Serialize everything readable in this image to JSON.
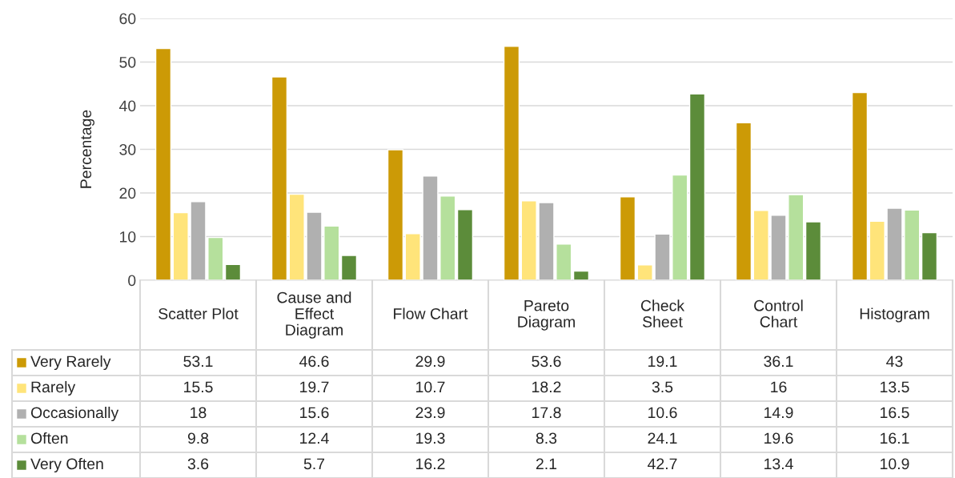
{
  "chart_data": {
    "type": "bar",
    "ylabel": "Percentage",
    "categories": [
      "Scatter Plot",
      "Cause and Effect Diagram",
      "Flow Chart",
      "Pareto Diagram",
      "Check Sheet",
      "Control Chart",
      "Histogram"
    ],
    "series": [
      {
        "name": "Very Rarely",
        "color": "#cc9a06",
        "values": [
          53.1,
          46.6,
          29.9,
          53.6,
          19.1,
          36.1,
          43
        ]
      },
      {
        "name": "Rarely",
        "color": "#ffe47a",
        "values": [
          15.5,
          19.7,
          10.7,
          18.2,
          3.5,
          16,
          13.5
        ]
      },
      {
        "name": "Occasionally",
        "color": "#b0b0b0",
        "values": [
          18,
          15.6,
          23.9,
          17.8,
          10.6,
          14.9,
          16.5
        ]
      },
      {
        "name": "Often",
        "color": "#b5e09c",
        "values": [
          9.8,
          12.4,
          19.3,
          8.3,
          24.1,
          19.6,
          16.1
        ]
      },
      {
        "name": "Very Often",
        "color": "#5c8c3a",
        "values": [
          3.6,
          5.7,
          16.2,
          2.1,
          42.7,
          13.4,
          10.9
        ]
      }
    ],
    "ylim": [
      0,
      60
    ],
    "yticks": [
      0,
      10,
      20,
      30,
      40,
      50,
      60
    ],
    "grid": "y",
    "data_labels": true,
    "legend": "bottom left"
  }
}
